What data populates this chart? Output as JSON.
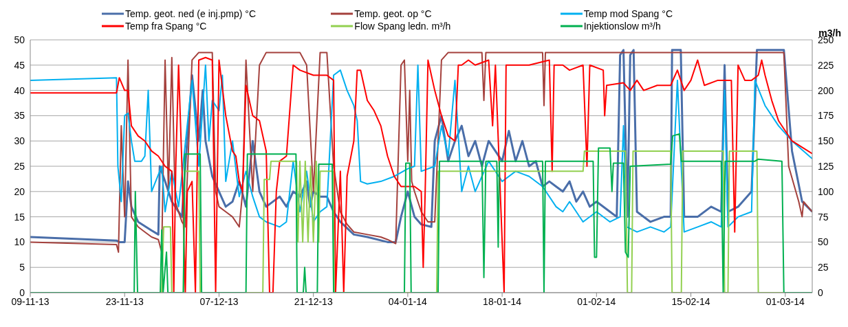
{
  "chart_data": {
    "type": "line",
    "xlim": [
      "2013-11-09",
      "2014-03-05"
    ],
    "xticks": [
      {
        "value": "2013-11-09",
        "label": "09-11-13"
      },
      {
        "value": "2013-11-23",
        "label": "23-11-13"
      },
      {
        "value": "2013-12-07",
        "label": "07-12-13"
      },
      {
        "value": "2013-12-21",
        "label": "21-12-13"
      },
      {
        "value": "2014-01-04",
        "label": "04-01-14"
      },
      {
        "value": "2014-01-18",
        "label": "18-01-14"
      },
      {
        "value": "2014-02-01",
        "label": "01-02-14"
      },
      {
        "value": "2014-02-15",
        "label": "15-02-14"
      },
      {
        "value": "2014-03-01",
        "label": "01-03-14"
      }
    ],
    "ylim": [
      0,
      50
    ],
    "yticks": [
      0,
      5,
      10,
      15,
      20,
      25,
      30,
      35,
      40,
      45,
      50
    ],
    "y2lim": [
      0,
      250
    ],
    "y2ticks": [
      0,
      25,
      50,
      75,
      100,
      125,
      150,
      175,
      200,
      225,
      250
    ],
    "y2label": "m3/h",
    "grid": "y",
    "legend": "top",
    "series": [
      {
        "name": "Temp. geot. ned (e inj.pmp) °C",
        "color": "#4a6ea9",
        "x": [
          "2013-11-09",
          "2013-11-21T19:00",
          "2013-11-22T05:00",
          "2013-11-23",
          "2013-11-23T12:00",
          "2013-11-24",
          "2013-11-25",
          "2013-11-27",
          "2013-11-28",
          "2013-11-28T05:00",
          "2013-11-29",
          "2013-11-30",
          "2013-12-01T12:00",
          "2013-12-02",
          "2013-12-03",
          "2013-12-04",
          "2013-12-04T14:00",
          "2013-12-05",
          "2013-12-06",
          "2013-12-07",
          "2013-12-08",
          "2013-12-09",
          "2013-12-10",
          "2013-12-11",
          "2013-12-12",
          "2013-12-13",
          "2013-12-14",
          "2013-12-16",
          "2013-12-17",
          "2013-12-18",
          "2013-12-19",
          "2013-12-20",
          "2013-12-20T12:00",
          "2013-12-21",
          "2013-12-22",
          "2013-12-23",
          "2013-12-24",
          "2013-12-25",
          "2013-12-27",
          "2013-12-29",
          "2014-01-01",
          "2014-01-02T05:00",
          "2014-01-03",
          "2014-01-04",
          "2014-01-05",
          "2014-01-06",
          "2014-01-07T12:00",
          "2014-01-08",
          "2014-01-09",
          "2014-01-10",
          "2014-01-11",
          "2014-01-12",
          "2014-01-13",
          "2014-01-14",
          "2014-01-15",
          "2014-01-16",
          "2014-01-17",
          "2014-01-18",
          "2014-01-19",
          "2014-01-20",
          "2014-01-21",
          "2014-01-22",
          "2014-01-23",
          "2014-01-24",
          "2014-01-25",
          "2014-01-26",
          "2014-01-27",
          "2014-01-28",
          "2014-01-29",
          "2014-01-30",
          "2014-01-31",
          "2014-02-01",
          "2014-02-03",
          "2014-02-04",
          "2014-02-04T12:00",
          "2014-02-05",
          "2014-02-05T14:00",
          "2014-02-06",
          "2014-02-06T12:00",
          "2014-02-07",
          "2014-02-09",
          "2014-02-11",
          "2014-02-12",
          "2014-02-12T05:00",
          "2014-02-13T12:00",
          "2014-02-14",
          "2014-02-16",
          "2014-02-18",
          "2014-02-19T12:00",
          "2014-02-20",
          "2014-02-20T12:00",
          "2014-02-22",
          "2014-02-24",
          "2014-02-24T07:00",
          "2014-02-24T19:00",
          "2014-02-28T19:00",
          "2014-03-02",
          "2014-03-03T12:00",
          "2014-03-05"
        ],
        "values": [
          11,
          10.3,
          10,
          10,
          22,
          17,
          14,
          12.3,
          11.5,
          25,
          22,
          18,
          15,
          25,
          43,
          30,
          40,
          30,
          23,
          20,
          17,
          18,
          22,
          17,
          30,
          20,
          17,
          19,
          17,
          20,
          19,
          22,
          17,
          20,
          19,
          19,
          16,
          14,
          11.5,
          11,
          10,
          10,
          15,
          20,
          15,
          13.5,
          13,
          30,
          35,
          26,
          30,
          33,
          27,
          30,
          25,
          30,
          28,
          26,
          32,
          26,
          30,
          25,
          26,
          21,
          22,
          21,
          20,
          22,
          18,
          20,
          17,
          18,
          16,
          15,
          47,
          48,
          15,
          47,
          48,
          16,
          14,
          15,
          15,
          48,
          48,
          15,
          15,
          17,
          16,
          45,
          16,
          17,
          20,
          30,
          48,
          48,
          28,
          18,
          16
        ]
      },
      {
        "name": "Temp. geot. op °C",
        "color": "#a4403c",
        "x": [
          "2013-11-09",
          "2013-11-21T19:00",
          "2013-11-22T02:00",
          "2013-11-22T12:00",
          "2013-11-23",
          "2013-11-23T12:00",
          "2013-11-24",
          "2013-11-25",
          "2013-11-26",
          "2013-11-27",
          "2013-11-28",
          "2013-11-28T12:00",
          "2013-11-29",
          "2013-11-29T12:00",
          "2013-11-30",
          "2013-11-30T12:00",
          "2013-12-01T12:00",
          "2013-12-02",
          "2013-12-03",
          "2013-12-04",
          "2013-12-06",
          "2013-12-06T12:00",
          "2013-12-07",
          "2013-12-08",
          "2013-12-09",
          "2013-12-10",
          "2013-12-10T12:00",
          "2013-12-11",
          "2013-12-12",
          "2013-12-13",
          "2013-12-14",
          "2013-12-19",
          "2013-12-20",
          "2013-12-21",
          "2013-12-22",
          "2013-12-23",
          "2013-12-24",
          "2013-12-25",
          "2013-12-26",
          "2013-12-27",
          "2013-12-29",
          "2013-12-31",
          "2014-01-01",
          "2014-01-02T05:00",
          "2014-01-03",
          "2014-01-03T12:00",
          "2014-01-04",
          "2014-01-04T07:00",
          "2014-01-04T14:00",
          "2014-01-05",
          "2014-01-06",
          "2014-01-07",
          "2014-01-08",
          "2014-01-09",
          "2014-01-10",
          "2014-01-15",
          "2014-01-15T07:00",
          "2014-01-15T14:00",
          "2014-01-24",
          "2014-01-24T05:00",
          "2014-01-24T10:00",
          "2014-02-28T19:00",
          "2014-03-01T12:00",
          "2014-03-03",
          "2014-03-03T12:00",
          "2014-03-03T17:00",
          "2014-03-05"
        ],
        "values": [
          10,
          9.5,
          8,
          33,
          15,
          46,
          15,
          13,
          12,
          11,
          10.5,
          8,
          46,
          20,
          46.5,
          18,
          14,
          13,
          46,
          47.5,
          47.5,
          20,
          17,
          16,
          15,
          13,
          20,
          46,
          20,
          45,
          47.5,
          47.5,
          45,
          20,
          47.5,
          47.5,
          25,
          16,
          13.5,
          12,
          11.5,
          11,
          10.5,
          9.7,
          45,
          46,
          26,
          40,
          22,
          20,
          16,
          14,
          14,
          46,
          47.5,
          47.5,
          38,
          47.5,
          47.5,
          37,
          47.5,
          47.5,
          25,
          18,
          15,
          18,
          16
        ]
      },
      {
        "name": "Temp mod Spang °C",
        "color": "#00b0f0",
        "x": [
          "2013-11-09",
          "2013-11-21T19:00",
          "2013-11-22",
          "2013-11-22T12:00",
          "2013-11-23",
          "2013-11-23T12:00",
          "2013-11-24",
          "2013-11-24T12:00",
          "2013-11-25T12:00",
          "2013-11-26",
          "2013-11-26T12:00",
          "2013-11-27",
          "2013-11-28T12:00",
          "2013-11-29",
          "2013-11-30",
          "2013-12-01",
          "2013-12-03",
          "2013-12-04",
          "2013-12-05",
          "2013-12-05T12:00",
          "2013-12-06",
          "2013-12-07",
          "2013-12-07T12:00",
          "2013-12-08",
          "2013-12-09",
          "2013-12-10",
          "2013-12-11",
          "2013-12-12",
          "2013-12-13",
          "2013-12-14",
          "2013-12-15",
          "2013-12-16",
          "2013-12-17",
          "2013-12-18",
          "2013-12-19",
          "2013-12-20",
          "2013-12-21",
          "2013-12-22",
          "2013-12-23",
          "2013-12-24",
          "2013-12-25",
          "2013-12-26",
          "2013-12-27",
          "2013-12-27T12:00",
          "2013-12-28",
          "2013-12-29",
          "2013-12-31",
          "2014-01-02",
          "2014-01-04",
          "2014-01-05",
          "2014-01-05T12:00",
          "2014-01-06",
          "2014-01-08",
          "2014-01-09",
          "2014-01-10",
          "2014-01-11",
          "2014-01-12",
          "2014-01-13",
          "2014-01-14",
          "2014-01-16",
          "2014-01-18",
          "2014-01-20",
          "2014-01-22",
          "2014-01-24",
          "2014-01-26",
          "2014-01-27",
          "2014-01-28",
          "2014-01-30",
          "2014-02-01",
          "2014-02-03",
          "2014-02-04T12:00",
          "2014-02-05",
          "2014-02-05T12:00",
          "2014-02-07",
          "2014-02-09",
          "2014-02-11",
          "2014-02-12",
          "2014-02-13",
          "2014-02-14",
          "2014-02-16",
          "2014-02-18",
          "2014-02-19T12:00",
          "2014-02-20",
          "2014-02-20T12:00",
          "2014-02-22",
          "2014-02-24",
          "2014-02-24T12:00",
          "2014-02-26",
          "2014-02-28",
          "2014-03-02",
          "2014-03-05"
        ],
        "values": [
          42,
          42.5,
          25,
          18,
          35,
          35.5,
          30,
          26,
          26,
          27,
          40,
          20,
          25,
          16,
          24,
          17,
          42,
          25,
          45,
          30,
          38,
          36,
          43,
          22,
          30,
          19,
          24,
          19,
          15,
          14,
          13.5,
          13,
          14,
          26,
          16,
          24,
          14,
          16,
          17,
          43,
          44,
          40,
          37,
          34,
          22,
          21.5,
          22,
          23,
          24.5,
          25,
          45,
          24,
          25,
          33,
          27,
          42,
          20,
          25,
          20,
          26,
          22,
          24,
          23,
          21,
          17,
          16,
          18,
          14,
          16,
          14,
          15,
          33,
          13,
          12,
          13,
          12,
          13,
          42,
          12,
          13,
          14,
          13,
          40,
          13,
          15,
          16,
          42,
          37,
          33,
          30,
          26.5
        ]
      },
      {
        "name": "Temp fra Spang °C",
        "color": "#ff0000",
        "x": [
          "2013-11-09",
          "2013-11-21T19:00",
          "2013-11-22T05:00",
          "2013-11-23",
          "2013-11-23T12:00",
          "2013-11-24",
          "2013-11-25",
          "2013-11-26",
          "2013-11-27",
          "2013-11-28",
          "2013-11-29",
          "2013-11-30",
          "2013-11-30T07:00",
          "2013-11-30T14:00",
          "2013-12-01",
          "2013-12-01T12:00",
          "2013-12-02",
          "2013-12-02T07:00",
          "2013-12-03",
          "2013-12-03T12:00",
          "2013-12-04",
          "2013-12-05",
          "2013-12-06",
          "2013-12-06T12:00",
          "2013-12-07",
          "2013-12-08",
          "2013-12-09",
          "2013-12-09T12:00",
          "2013-12-10",
          "2013-12-10T12:00",
          "2013-12-11",
          "2013-12-12",
          "2013-12-13",
          "2013-12-14",
          "2013-12-14T12:00",
          "2013-12-15",
          "2013-12-15T12:00",
          "2013-12-16",
          "2013-12-17",
          "2013-12-18",
          "2013-12-19",
          "2013-12-21",
          "2013-12-23",
          "2013-12-24",
          "2013-12-24T07:00",
          "2013-12-25",
          "2013-12-25T12:00",
          "2013-12-26",
          "2013-12-27",
          "2013-12-27T12:00",
          "2013-12-28",
          "2013-12-29",
          "2013-12-30",
          "2013-12-31",
          "2014-01-01",
          "2014-01-02",
          "2014-01-03",
          "2014-01-05",
          "2014-01-06",
          "2014-01-06T07:00",
          "2014-01-06T14:00",
          "2014-01-07",
          "2014-01-08",
          "2014-01-09",
          "2014-01-10",
          "2014-01-11",
          "2014-01-11T12:00",
          "2014-01-12",
          "2014-01-13",
          "2014-01-14",
          "2014-01-16",
          "2014-01-16T14:00",
          "2014-01-17",
          "2014-01-18T07:00",
          "2014-01-18T14:00",
          "2014-01-20",
          "2014-01-22",
          "2014-01-25",
          "2014-01-25T10:00",
          "2014-01-25T17:00",
          "2014-01-27",
          "2014-01-28",
          "2014-01-30",
          "2014-01-30T14:00",
          "2014-01-31",
          "2014-02-02",
          "2014-02-02T05:00",
          "2014-02-02T12:00",
          "2014-02-05",
          "2014-02-06",
          "2014-02-07",
          "2014-02-08",
          "2014-02-10",
          "2014-02-12",
          "2014-02-13",
          "2014-02-14",
          "2014-02-15",
          "2014-02-16",
          "2014-02-17",
          "2014-02-19",
          "2014-02-21",
          "2014-02-21T12:00",
          "2014-02-22",
          "2014-02-23",
          "2014-02-24",
          "2014-02-25",
          "2014-02-25T12:00",
          "2014-02-26",
          "2014-02-27",
          "2014-02-28",
          "2014-03-02",
          "2014-03-05"
        ],
        "values": [
          39.5,
          39.5,
          42.5,
          40,
          40,
          33,
          31,
          30,
          28,
          27,
          25,
          24,
          0,
          25,
          45,
          25,
          0,
          20,
          22,
          0,
          46,
          46.5,
          46,
          0,
          46,
          35,
          28,
          27,
          22,
          20,
          41,
          35,
          34,
          28,
          0,
          0,
          20,
          26,
          27,
          45,
          44,
          43,
          43,
          42,
          0,
          24,
          0,
          23,
          30,
          44,
          44,
          38,
          36,
          33,
          27,
          23,
          21,
          21,
          20,
          5,
          20,
          46,
          40,
          35,
          31,
          30,
          45,
          45,
          46,
          45,
          46,
          33,
          45,
          0,
          45,
          45,
          45,
          46,
          24,
          45,
          45,
          44,
          45,
          25,
          45,
          44,
          35,
          41,
          41.5,
          40,
          42,
          40,
          41,
          41,
          44,
          40,
          42,
          46,
          41,
          42,
          42,
          12,
          45,
          42,
          42,
          43,
          46,
          43,
          38,
          34,
          30,
          27.5
        ]
      },
      {
        "name": "Flow Spang ledn. m³/h",
        "color": "#92d050",
        "axis": "y2",
        "x": [
          "2013-11-09",
          "2013-11-28T12:00",
          "2013-11-28T19:00",
          "2013-11-29T19:00",
          "2013-11-30",
          "2013-12-01T17:00",
          "2013-12-01T22:00",
          "2013-12-04",
          "2013-12-04T05:00",
          "2013-12-13T12:00",
          "2013-12-13T17:00",
          "2013-12-14T12:00",
          "2013-12-14T17:00",
          "2013-12-18T12:00",
          "2013-12-18T17:00",
          "2013-12-19",
          "2013-12-19T10:00",
          "2013-12-19T19:00",
          "2013-12-20T05:00",
          "2013-12-20T14:00",
          "2013-12-21",
          "2013-12-21T10:00",
          "2013-12-21T19:00",
          "2013-12-22",
          "2013-12-23T22:00",
          "2013-12-24T02:00",
          "2014-01-08T07:00",
          "2014-01-08T12:00",
          "2014-01-30",
          "2014-01-30T05:00",
          "2014-02-05T07:00",
          "2014-02-05T14:00",
          "2014-02-06T05:00",
          "2014-02-06T10:00",
          "2014-02-12",
          "2014-02-12T05:00",
          "2014-02-13T14:00",
          "2014-02-13T19:00",
          "2014-02-19T19:00",
          "2014-02-20",
          "2014-02-20T12:00",
          "2014-02-20T17:00",
          "2014-02-24T19:00",
          "2014-02-25",
          "2014-03-05"
        ],
        "values": [
          0,
          0,
          65,
          65,
          0,
          0,
          120,
          120,
          0,
          0,
          112,
          112,
          130,
          130,
          50,
          130,
          50,
          130,
          50,
          125,
          50,
          130,
          50,
          120,
          120,
          0,
          0,
          120,
          120,
          140,
          140,
          0,
          0,
          140,
          140,
          0,
          0,
          140,
          140,
          0,
          0,
          140,
          140,
          0,
          0
        ]
      },
      {
        "name": "Injektionslow m³/h",
        "color": "#00b050",
        "axis": "y2",
        "x": [
          "2013-11-09",
          "2013-11-24T10:00",
          "2013-11-24T14:00",
          "2013-11-24T22:00",
          "2013-11-28T07:00",
          "2013-11-28T12:00",
          "2013-11-28T17:00",
          "2013-11-29T05:00",
          "2013-11-29T10:00",
          "2013-12-01T17:00",
          "2013-12-01T22:00",
          "2013-12-04T05:00",
          "2013-12-04T10:00",
          "2013-12-11",
          "2013-12-11T05:00",
          "2013-12-18T10:00",
          "2013-12-18T14:00",
          "2013-12-19T12:00",
          "2013-12-19T17:00",
          "2013-12-19T22:00",
          "2013-12-21T14:00",
          "2013-12-21T19:00",
          "2013-12-23T19:00",
          "2013-12-24",
          "2014-01-03T12:00",
          "2014-01-03T17:00",
          "2014-01-04T07:00",
          "2014-01-04T12:00",
          "2014-01-08T12:00",
          "2014-01-08T17:00",
          "2014-01-15",
          "2014-01-15T07:00",
          "2014-01-15T14:00",
          "2014-01-17T05:00",
          "2014-01-17T10:00",
          "2014-01-17T14:00",
          "2014-01-24",
          "2014-01-24T05:00",
          "2014-01-24T10:00",
          "2014-01-31T12:00",
          "2014-01-31T17:00",
          "2014-02-01",
          "2014-02-01T07:00",
          "2014-02-03",
          "2014-02-03T07:00",
          "2014-02-03T12:00",
          "2014-02-05",
          "2014-02-05T07:00",
          "2014-02-05T17:00",
          "2014-02-06",
          "2014-02-12",
          "2014-02-12T07:00",
          "2014-02-13T07:00",
          "2014-02-13T14:00",
          "2014-02-19T12:00",
          "2014-02-19T19:00",
          "2014-02-20T02:00",
          "2014-02-24T12:00",
          "2014-02-25",
          "2014-02-28T12:00",
          "2014-02-28T19:00",
          "2014-03-05"
        ],
        "values": [
          0,
          0,
          100,
          0,
          0,
          62,
          0,
          40,
          0,
          0,
          137,
          137,
          0,
          0,
          137,
          137,
          0,
          0,
          25,
          0,
          0,
          127,
          127,
          0,
          0,
          128,
          128,
          0,
          0,
          130,
          130,
          15,
          130,
          130,
          45,
          130,
          130,
          0,
          130,
          130,
          35,
          35,
          143,
          143,
          100,
          128,
          128,
          40,
          35,
          125,
          127,
          155,
          157,
          130,
          130,
          0,
          130,
          130,
          132,
          130,
          0,
          0
        ]
      }
    ]
  }
}
